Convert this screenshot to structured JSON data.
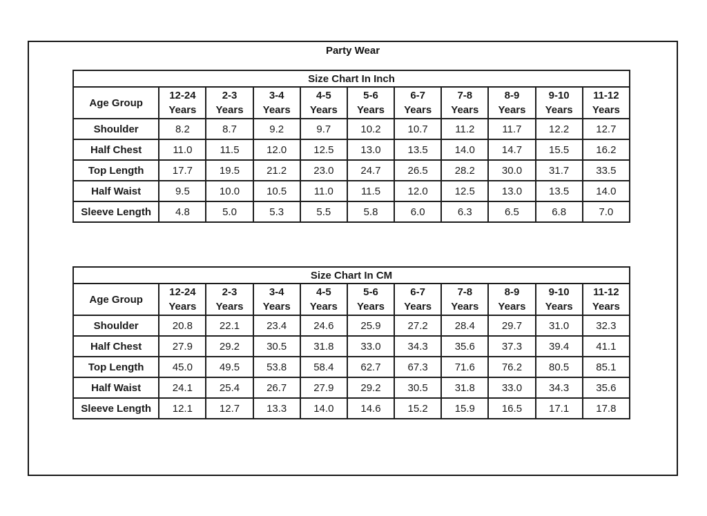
{
  "title": "Party Wear",
  "tables": [
    {
      "caption": "Size Chart In Inch",
      "header_label": "Age Group",
      "age_groups": [
        "12-24\nYears",
        "2-3\nYears",
        "3-4\nYears",
        "4-5\nYears",
        "5-6\nYears",
        "6-7\nYears",
        "7-8\nYears",
        "8-9\nYears",
        "9-10\nYears",
        "11-12\nYears"
      ],
      "rows": [
        {
          "label": "Shoulder",
          "values": [
            "8.2",
            "8.7",
            "9.2",
            "9.7",
            "10.2",
            "10.7",
            "11.2",
            "11.7",
            "12.2",
            "12.7"
          ]
        },
        {
          "label": "Half Chest",
          "values": [
            "11.0",
            "11.5",
            "12.0",
            "12.5",
            "13.0",
            "13.5",
            "14.0",
            "14.7",
            "15.5",
            "16.2"
          ]
        },
        {
          "label": "Top Length",
          "values": [
            "17.7",
            "19.5",
            "21.2",
            "23.0",
            "24.7",
            "26.5",
            "28.2",
            "30.0",
            "31.7",
            "33.5"
          ]
        },
        {
          "label": "Half Waist",
          "values": [
            "9.5",
            "10.0",
            "10.5",
            "11.0",
            "11.5",
            "12.0",
            "12.5",
            "13.0",
            "13.5",
            "14.0"
          ]
        },
        {
          "label": "Sleeve Length",
          "values": [
            "4.8",
            "5.0",
            "5.3",
            "5.5",
            "5.8",
            "6.0",
            "6.3",
            "6.5",
            "6.8",
            "7.0"
          ]
        }
      ]
    },
    {
      "caption": "Size Chart In CM",
      "header_label": "Age Group",
      "age_groups": [
        "12-24\nYears",
        "2-3\nYears",
        "3-4\nYears",
        "4-5\nYears",
        "5-6\nYears",
        "6-7\nYears",
        "7-8\nYears",
        "8-9\nYears",
        "9-10\nYears",
        "11-12\nYears"
      ],
      "rows": [
        {
          "label": "Shoulder",
          "values": [
            "20.8",
            "22.1",
            "23.4",
            "24.6",
            "25.9",
            "27.2",
            "28.4",
            "29.7",
            "31.0",
            "32.3"
          ]
        },
        {
          "label": "Half Chest",
          "values": [
            "27.9",
            "29.2",
            "30.5",
            "31.8",
            "33.0",
            "34.3",
            "35.6",
            "37.3",
            "39.4",
            "41.1"
          ]
        },
        {
          "label": "Top Length",
          "values": [
            "45.0",
            "49.5",
            "53.8",
            "58.4",
            "62.7",
            "67.3",
            "71.6",
            "76.2",
            "80.5",
            "85.1"
          ]
        },
        {
          "label": "Half Waist",
          "values": [
            "24.1",
            "25.4",
            "26.7",
            "27.9",
            "29.2",
            "30.5",
            "31.8",
            "33.0",
            "34.3",
            "35.6"
          ]
        },
        {
          "label": "Sleeve Length",
          "values": [
            "12.1",
            "12.7",
            "13.3",
            "14.0",
            "14.6",
            "15.2",
            "15.9",
            "16.5",
            "17.1",
            "17.8"
          ]
        }
      ]
    }
  ],
  "layout": {
    "label_col_width": "124px",
    "value_col_width": "68px"
  }
}
